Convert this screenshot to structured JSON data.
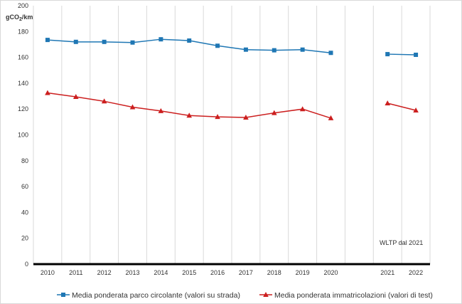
{
  "chart_data": {
    "type": "line",
    "ylabel": "gCO₂/km",
    "ylim": [
      0,
      200
    ],
    "yticks": [
      0,
      20,
      40,
      60,
      80,
      100,
      120,
      140,
      160,
      180,
      200
    ],
    "categories": [
      "2010",
      "2011",
      "2012",
      "2013",
      "2014",
      "2015",
      "2016",
      "2017",
      "2018",
      "2019",
      "2020",
      "",
      "2021",
      "2022"
    ],
    "grid": "vertical",
    "legend_position": "bottom",
    "annotation": "WLTP dal 2021",
    "series": [
      {
        "name": "Media ponderata parco circolante (valori su strada)",
        "color": "#1f77b4",
        "marker": "square",
        "values": [
          173.5,
          172,
          172,
          171.5,
          174,
          173,
          169,
          166,
          165.5,
          166,
          163.5,
          null,
          162.5,
          162
        ]
      },
      {
        "name": "Media ponderata immatricolazioni (valori di test)",
        "color": "#cc1f1f",
        "marker": "triangle",
        "values": [
          132.5,
          129.5,
          126,
          121.5,
          118.5,
          115,
          114,
          113.5,
          117,
          120,
          113,
          null,
          124.5,
          119
        ]
      }
    ]
  }
}
